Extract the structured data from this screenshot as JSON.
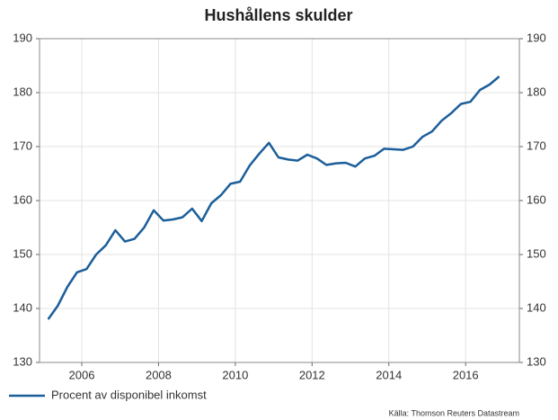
{
  "chart_data": {
    "type": "line",
    "title": "Hushållens skulder",
    "x": [
      2005.125,
      2005.375,
      2005.625,
      2005.875,
      2006.125,
      2006.375,
      2006.625,
      2006.875,
      2007.125,
      2007.375,
      2007.625,
      2007.875,
      2008.125,
      2008.375,
      2008.625,
      2008.875,
      2009.125,
      2009.375,
      2009.625,
      2009.875,
      2010.125,
      2010.375,
      2010.625,
      2010.875,
      2011.125,
      2011.375,
      2011.625,
      2011.875,
      2012.125,
      2012.375,
      2012.625,
      2012.875,
      2013.125,
      2013.375,
      2013.625,
      2013.875,
      2014.125,
      2014.375,
      2014.625,
      2014.875,
      2015.125,
      2015.375,
      2015.625,
      2015.875,
      2016.125,
      2016.375,
      2016.625,
      2016.875
    ],
    "series": [
      {
        "name": "Procent av disponibel inkomst",
        "color": "#1b5e9a",
        "values": [
          138,
          140.5,
          144,
          146.7,
          147.3,
          150,
          151.7,
          154.5,
          152.4,
          152.9,
          155,
          158.2,
          156.3,
          156.5,
          156.9,
          158.5,
          156.2,
          159.5,
          161,
          163.1,
          163.5,
          166.5,
          168.7,
          170.7,
          168,
          167.6,
          167.4,
          168.5,
          167.8,
          166.6,
          166.9,
          167,
          166.3,
          167.8,
          168.3,
          169.6,
          169.5,
          169.4,
          170,
          171.8,
          172.8,
          174.8,
          176.2,
          177.9,
          178.3,
          180.5,
          181.5,
          183
        ]
      }
    ],
    "xlim": [
      2004.9,
      2017.4
    ],
    "xticks": [
      2006,
      2008,
      2010,
      2012,
      2014,
      2016
    ],
    "ylim": [
      130,
      190
    ],
    "yticks": [
      130,
      140,
      150,
      160,
      170,
      180,
      190
    ],
    "y2lim": [
      130,
      190
    ],
    "y2ticks": [
      130,
      140,
      150,
      160,
      170,
      180,
      190
    ],
    "grid": true,
    "legend": "bottom-left",
    "source": "Källa: Thomson Reuters Datastream"
  }
}
